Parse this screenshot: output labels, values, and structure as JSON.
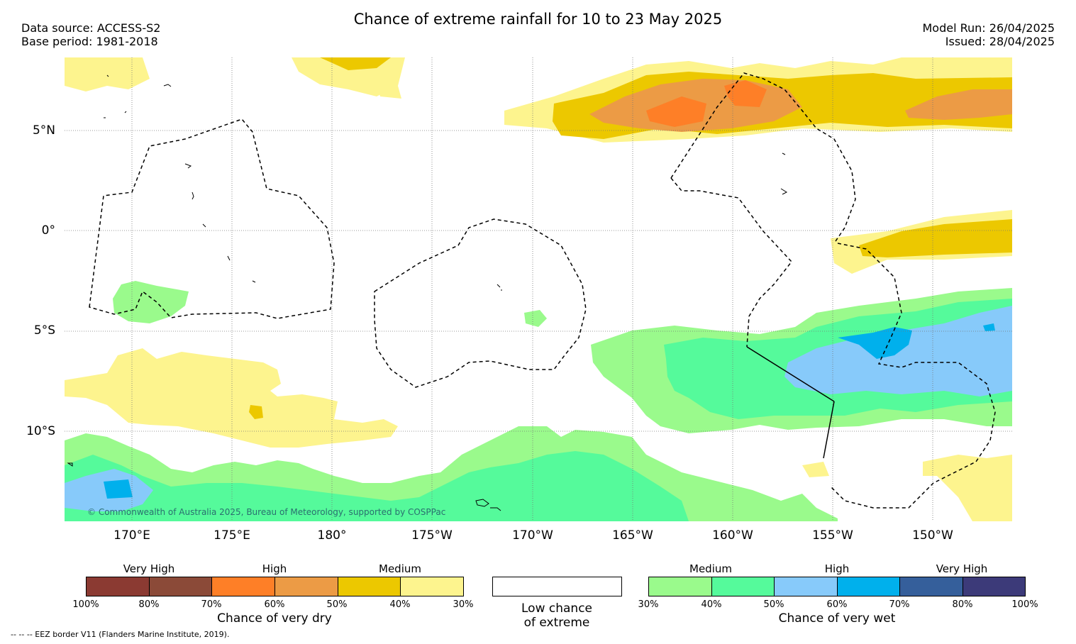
{
  "header": {
    "title": "Chance of extreme rainfall for 10 to 23 May 2025",
    "data_source": "Data source: ACCESS-S2",
    "base_period": "Base period: 1981-2018",
    "model_run": "Model Run: 26/04/2025",
    "issued": "Issued: 28/04/2025"
  },
  "map": {
    "lat_labels": [
      "5°N",
      "0°",
      "5°S",
      "10°S"
    ],
    "lon_labels": [
      "170°E",
      "175°E",
      "180°",
      "175°W",
      "170°W",
      "165°W",
      "160°W",
      "155°W",
      "150°W"
    ],
    "copyright": "© Commonwealth of Australia 2025, Bureau of Meteorology, supported by COSPPac",
    "colors": {
      "dry_30": "#fdf48e",
      "dry_40": "#ecc800",
      "dry_50": "#ec9b45",
      "dry_60": "#fe7f27",
      "dry_70": "#8b4a38",
      "dry_80": "#8b3a32",
      "wet_30": "#9afa8c",
      "wet_40": "#55fa9b",
      "wet_50": "#87cafa",
      "wet_60": "#00b0ec",
      "wet_70": "#355f9b",
      "wet_80": "#3c3a79",
      "low": "#ffffff"
    }
  },
  "legend": {
    "dry": {
      "levels": [
        "Very High",
        "High",
        "Medium"
      ],
      "ticks": [
        "100%",
        "80%",
        "70%",
        "60%",
        "50%",
        "40%",
        "30%"
      ],
      "title": "Chance of very dry",
      "colors": [
        "#8b3a32",
        "#8b4a38",
        "#fe7f27",
        "#ec9b45",
        "#ecc800",
        "#fdf48e"
      ]
    },
    "low": {
      "line1": "Low chance",
      "line2": "of extreme"
    },
    "wet": {
      "levels": [
        "Medium",
        "High",
        "Very High"
      ],
      "ticks": [
        "30%",
        "40%",
        "50%",
        "60%",
        "70%",
        "80%",
        "100%"
      ],
      "title": "Chance of very wet",
      "colors": [
        "#9afa8c",
        "#55fa9b",
        "#87cafa",
        "#00b0ec",
        "#355f9b",
        "#3c3a79"
      ]
    }
  },
  "footnote": "--  --  -- EEZ border V11 (Flanders Marine Institute, 2019)."
}
